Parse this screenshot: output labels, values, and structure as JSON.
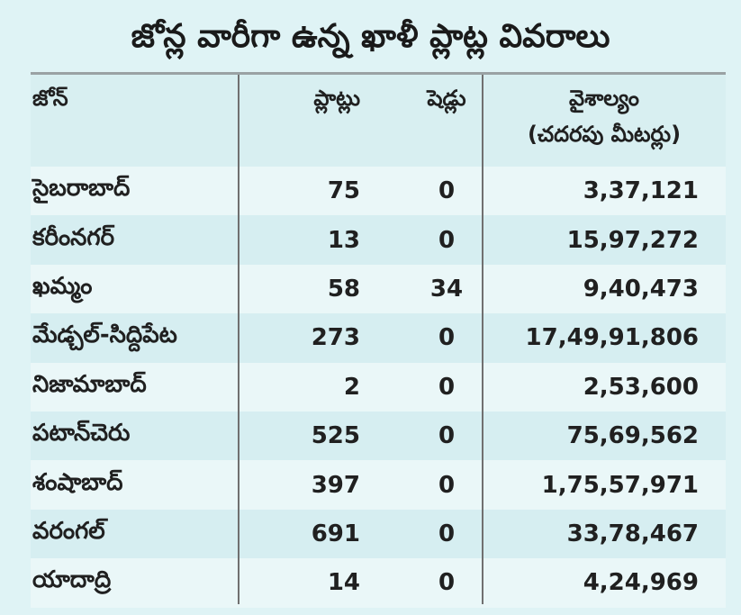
{
  "title": "జోన్ల వారీగా ఉన్న ఖాళీ ప్లాట్ల వివరాలు",
  "columns": {
    "zone": "జోన్",
    "plots": "ప్లాట్లు",
    "sheds": "షెడ్లు",
    "area_line1": "వైశాల్యం",
    "area_line2": "(చదరపు మీటర్లు)"
  },
  "rows": [
    {
      "zone": "సైబరాబాద్",
      "plots": "75",
      "sheds": "0",
      "area": "3,37,121"
    },
    {
      "zone": "కరీంనగర్",
      "plots": "13",
      "sheds": "0",
      "area": "15,97,272"
    },
    {
      "zone": "ఖమ్మం",
      "plots": "58",
      "sheds": "34",
      "area": "9,40,473"
    },
    {
      "zone": "మేడ్చల్-సిద్దిపేట",
      "plots": "273",
      "sheds": "0",
      "area": "17,49,91,806"
    },
    {
      "zone": "నిజామాబాద్",
      "plots": "2",
      "sheds": "0",
      "area": "2,53,600"
    },
    {
      "zone": "పటాన్‌చెరు",
      "plots": "525",
      "sheds": "0",
      "area": "75,69,562"
    },
    {
      "zone": "శంషాబాద్",
      "plots": "397",
      "sheds": "0",
      "area": "1,75,57,971"
    },
    {
      "zone": "వరంగల్",
      "plots": "691",
      "sheds": "0",
      "area": "33,78,467"
    },
    {
      "zone": "యాదాద్రి",
      "plots": "14",
      "sheds": "0",
      "area": "4,24,969"
    }
  ]
}
